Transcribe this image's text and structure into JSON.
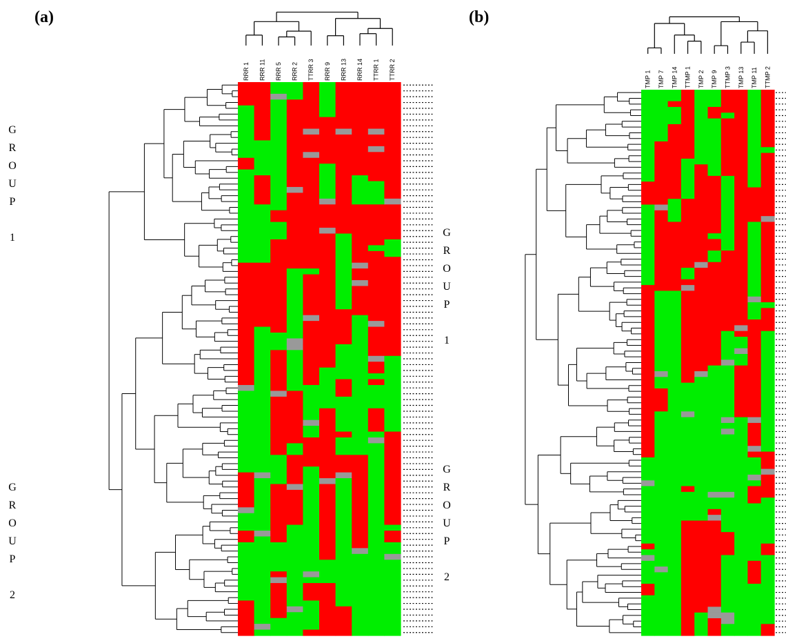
{
  "figure": {
    "panels": [
      {
        "label": "(a)",
        "group1_letters": [
          "G",
          "R",
          "O",
          "U",
          "P",
          "",
          "1"
        ],
        "group2_letters": [
          "G",
          "R",
          "O",
          "U",
          "P",
          "",
          "2"
        ],
        "columns": [
          "RRR 1",
          "RRR 11",
          "RRR 5",
          "RRR 2",
          "TTRR 3",
          "RRR 9",
          "RRR 13",
          "RRR 14",
          "TTRR 1",
          "TTRR 2"
        ]
      },
      {
        "label": "(b)",
        "group1_letters": [
          "G",
          "R",
          "O",
          "U",
          "P",
          "",
          "1"
        ],
        "group2_letters": [
          "G",
          "R",
          "O",
          "U",
          "P",
          "",
          "2"
        ],
        "columns": [
          "TMP 1",
          "TMP 7",
          "TMP 14",
          "TTMP 1",
          "TMP 2",
          "TMP 9",
          "TTMP 3",
          "TMP 13",
          "TMP 11",
          "TTMP 2"
        ]
      }
    ],
    "colors": {
      "present": "#ff0000",
      "absent": "#00ee00",
      "missing": "#999999",
      "line": "#000000"
    }
  }
}
